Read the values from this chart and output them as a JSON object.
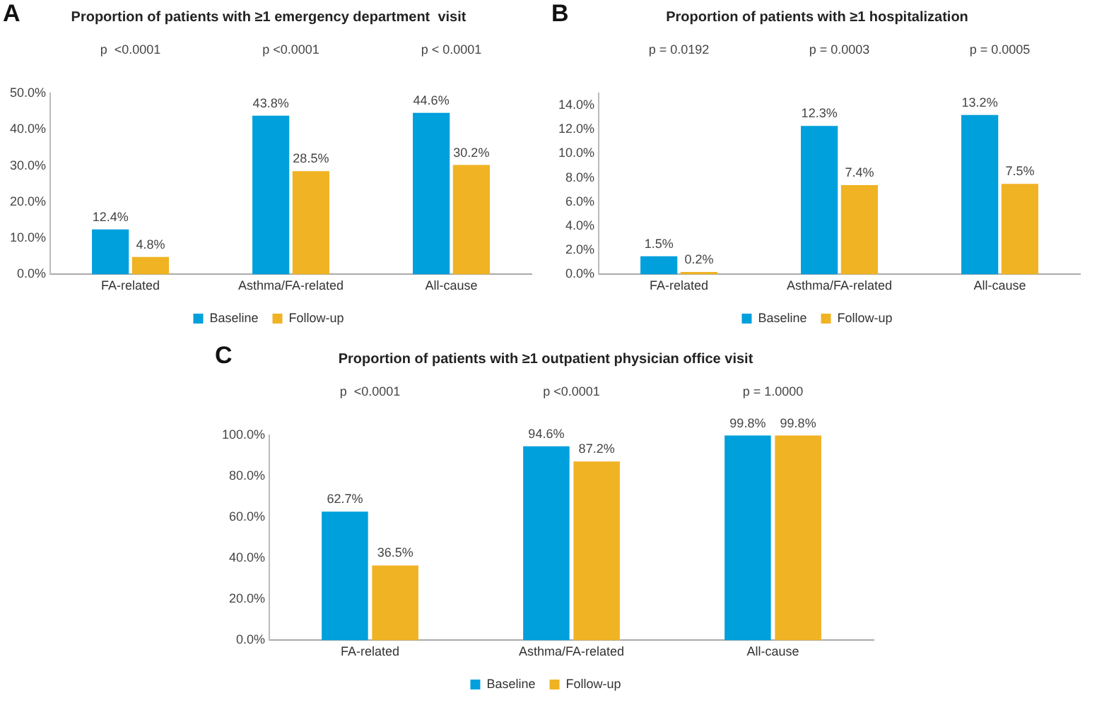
{
  "chart_data": [
    {
      "type": "bar",
      "title": "Proportion of patients with ≥1 emergency department  visit",
      "categories": [
        "FA-related",
        "Asthma/FA-related",
        "All-cause"
      ],
      "series": [
        {
          "name": "Baseline",
          "color": "#00a0dc",
          "values": [
            12.4,
            43.8,
            44.6
          ],
          "value_labels": [
            "12.4%",
            "43.8%",
            "44.6%"
          ]
        },
        {
          "name": "Follow-up",
          "color": "#f0b323",
          "values": [
            4.8,
            28.5,
            30.2
          ],
          "value_labels": [
            "4.8%",
            "28.5%",
            "30.2%"
          ]
        }
      ],
      "ylim": [
        0,
        50
      ],
      "yticks": [
        {
          "value": 0,
          "label": "0.0%"
        },
        {
          "value": 10,
          "label": "10.0%"
        },
        {
          "value": 20,
          "label": "20.0%"
        },
        {
          "value": 30,
          "label": "30.0%"
        },
        {
          "value": 40,
          "label": "40.0%"
        },
        {
          "value": 50,
          "label": "50.0%"
        }
      ],
      "grid": false,
      "legend": "bottom",
      "annotations": [
        "A",
        "p  <0.0001",
        "p <0.0001",
        "p < 0.0001"
      ]
    },
    {
      "type": "bar",
      "title": "Proportion of patients with ≥1 hospitalization",
      "categories": [
        "FA-related",
        "Asthma/FA-related",
        "All-cause"
      ],
      "series": [
        {
          "name": "Baseline",
          "color": "#00a0dc",
          "values": [
            1.5,
            12.3,
            13.2
          ],
          "value_labels": [
            "1.5%",
            "12.3%",
            "13.2%"
          ]
        },
        {
          "name": "Follow-up",
          "color": "#f0b323",
          "values": [
            0.2,
            7.4,
            7.5
          ],
          "value_labels": [
            "0.2%",
            "7.4%",
            "7.5%"
          ]
        }
      ],
      "ylim": [
        0,
        15
      ],
      "yticks": [
        {
          "value": 0,
          "label": "0.0%"
        },
        {
          "value": 2,
          "label": "2.0%"
        },
        {
          "value": 4,
          "label": "4.0%"
        },
        {
          "value": 6,
          "label": "6.0%"
        },
        {
          "value": 8,
          "label": "8.0%"
        },
        {
          "value": 10,
          "label": "10.0%"
        },
        {
          "value": 12,
          "label": "12.0%"
        },
        {
          "value": 14,
          "label": "14.0%"
        }
      ],
      "grid": false,
      "legend": "bottom",
      "annotations": [
        "B",
        "p = 0.0192",
        "p = 0.0003",
        "p = 0.0005"
      ]
    },
    {
      "type": "bar",
      "title": "Proportion of patients with ≥1 outpatient physician office visit",
      "categories": [
        "FA-related",
        "Asthma/FA-related",
        "All-cause"
      ],
      "series": [
        {
          "name": "Baseline",
          "color": "#00a0dc",
          "values": [
            62.7,
            94.6,
            99.8
          ],
          "value_labels": [
            "62.7%",
            "94.6%",
            "99.8%"
          ]
        },
        {
          "name": "Follow-up",
          "color": "#f0b323",
          "values": [
            36.5,
            87.2,
            99.8
          ],
          "value_labels": [
            "36.5%",
            "87.2%",
            "99.8%"
          ]
        }
      ],
      "ylim": [
        0,
        100
      ],
      "yticks": [
        {
          "value": 0,
          "label": "0.0%"
        },
        {
          "value": 20,
          "label": "20.0%"
        },
        {
          "value": 40,
          "label": "40.0%"
        },
        {
          "value": 60,
          "label": "60.0%"
        },
        {
          "value": 80,
          "label": "80.0%"
        },
        {
          "value": 100,
          "label": "100.0%"
        }
      ],
      "grid": false,
      "legend": "bottom",
      "annotations": [
        "C",
        "p  <0.0001",
        "p <0.0001",
        "p = 1.0000"
      ]
    }
  ]
}
